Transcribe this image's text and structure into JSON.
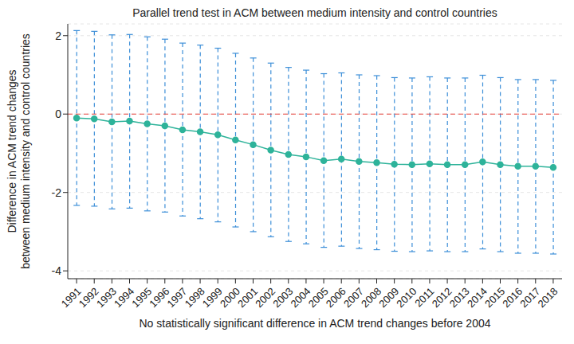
{
  "chart_data": {
    "type": "line",
    "title": "Parallel trend test in ACM between medium intensity and control countries",
    "x_label": "No statistically significant difference in ACM trend changes before 2004",
    "y_label": [
      "Difference in ACM trend changes",
      "between medium intensity and control countries"
    ],
    "categories": [
      "1991",
      "1992",
      "1993",
      "1994",
      "1995",
      "1996",
      "1997",
      "1998",
      "1999",
      "2000",
      "2001",
      "2002",
      "2003",
      "2004",
      "2005",
      "2006",
      "2007",
      "2008",
      "2009",
      "2010",
      "2011",
      "2012",
      "2013",
      "2014",
      "2015",
      "2016",
      "2017",
      "2018"
    ],
    "values": [
      -0.1,
      -0.12,
      -0.2,
      -0.18,
      -0.25,
      -0.3,
      -0.4,
      -0.45,
      -0.53,
      -0.66,
      -0.78,
      -0.92,
      -1.03,
      -1.09,
      -1.19,
      -1.15,
      -1.21,
      -1.24,
      -1.28,
      -1.29,
      -1.27,
      -1.29,
      -1.29,
      -1.22,
      -1.29,
      -1.33,
      -1.33,
      -1.36
    ],
    "color": "#2eb39a",
    "marker": "circle",
    "error_bars": {
      "lower": [
        -2.33,
        -2.35,
        -2.42,
        -2.4,
        -2.47,
        -2.5,
        -2.6,
        -2.67,
        -2.75,
        -2.88,
        -3.0,
        -3.13,
        -3.25,
        -3.31,
        -3.4,
        -3.37,
        -3.43,
        -3.46,
        -3.5,
        -3.51,
        -3.49,
        -3.51,
        -3.51,
        -3.44,
        -3.51,
        -3.55,
        -3.55,
        -3.57
      ],
      "upper": [
        2.13,
        2.11,
        2.02,
        2.03,
        1.97,
        1.91,
        1.81,
        1.76,
        1.68,
        1.55,
        1.43,
        1.3,
        1.19,
        1.12,
        1.03,
        1.05,
        1.0,
        0.98,
        0.93,
        0.92,
        0.95,
        0.92,
        0.92,
        0.99,
        0.93,
        0.88,
        0.88,
        0.86
      ],
      "color": "#3d8fd8",
      "line_style": "dashed"
    },
    "reference_line": {
      "y": 0,
      "color": "#e8403a",
      "line_style": "dashed"
    },
    "ylim": [
      -4.2,
      2.3
    ],
    "yticks": [
      -4,
      -2,
      0,
      2
    ],
    "grid": true
  }
}
